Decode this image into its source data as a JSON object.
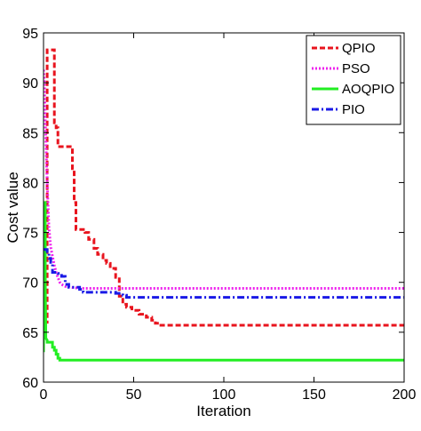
{
  "chart_data": {
    "type": "line",
    "title": "",
    "xlabel": "Iteration",
    "ylabel": "Cost value",
    "xlim": [
      0,
      200
    ],
    "ylim": [
      60,
      95
    ],
    "xticks": [
      0,
      50,
      100,
      150,
      200
    ],
    "yticks": [
      60,
      65,
      70,
      75,
      80,
      85,
      90,
      95
    ],
    "xtick_labels": [
      "0",
      "50",
      "100",
      "150",
      "200"
    ],
    "ytick_labels": [
      "60",
      "65",
      "70",
      "75",
      "80",
      "85",
      "90",
      "95"
    ],
    "grid": false,
    "legend_position": "top-right",
    "series": [
      {
        "name": "QPIO",
        "color": "#e8141e",
        "style": "dashed",
        "x": [
          0,
          2,
          2,
          6,
          6,
          7,
          7,
          8,
          8,
          16,
          16,
          17,
          17,
          18,
          18,
          23,
          23,
          25,
          25,
          28,
          28,
          30,
          30,
          33,
          33,
          35,
          35,
          37,
          37,
          40,
          40,
          42,
          42,
          44,
          44,
          46,
          46,
          49,
          49,
          53,
          53,
          57,
          57,
          60,
          60,
          62,
          62,
          64,
          64,
          200
        ],
        "y": [
          66,
          66,
          93.3,
          93.3,
          86,
          86,
          85.5,
          85.5,
          83.6,
          83.6,
          81.4,
          81.4,
          78,
          78,
          75.3,
          75.3,
          75,
          75,
          74.3,
          74.3,
          73.4,
          73.4,
          72.8,
          72.8,
          72.2,
          72.2,
          71.9,
          71.9,
          71.4,
          71.4,
          70.5,
          70.5,
          68.6,
          68.6,
          67.8,
          67.8,
          67.5,
          67.5,
          67.2,
          67.2,
          66.8,
          66.8,
          66.5,
          66.5,
          66.2,
          66.2,
          65.9,
          65.9,
          65.7,
          65.7
        ]
      },
      {
        "name": "PSO",
        "color": "#ee22ee",
        "style": "dotted",
        "x": [
          0,
          0.5,
          1,
          2,
          3,
          4,
          5,
          6,
          7,
          8,
          9,
          10,
          12,
          15,
          20,
          200
        ],
        "y": [
          91.3,
          90,
          86,
          80,
          75.5,
          73.5,
          72.6,
          71.7,
          71,
          70.5,
          70,
          69.8,
          69.6,
          69.5,
          69.4,
          69.4
        ]
      },
      {
        "name": "AOQPIO",
        "color": "#22ee22",
        "style": "solid",
        "x": [
          0,
          0.3,
          1,
          1,
          1.3,
          2,
          2,
          5,
          5,
          6,
          6,
          7,
          7,
          8,
          8,
          9,
          9,
          200
        ],
        "y": [
          63,
          78,
          78,
          70,
          64.4,
          64.2,
          64,
          64,
          63.5,
          63.5,
          63.2,
          63.2,
          62.8,
          62.8,
          62.4,
          62.4,
          62.2,
          62.2
        ]
      },
      {
        "name": "PIO",
        "color": "#1a1ae6",
        "style": "dash-dot",
        "x": [
          0,
          2,
          2,
          3,
          3,
          4,
          4,
          5,
          5,
          8,
          8,
          10,
          10,
          12,
          12,
          14,
          14,
          20,
          20,
          22,
          22,
          40,
          40,
          44,
          44,
          46,
          46,
          200
        ],
        "y": [
          73.3,
          73.3,
          72.9,
          72.9,
          72.4,
          72.4,
          72,
          72,
          71,
          71,
          70.9,
          70.9,
          70.6,
          70.6,
          69.8,
          69.8,
          69.5,
          69.5,
          69.3,
          69.3,
          69,
          69,
          68.9,
          68.9,
          68.7,
          68.7,
          68.5,
          68.5
        ]
      }
    ]
  }
}
